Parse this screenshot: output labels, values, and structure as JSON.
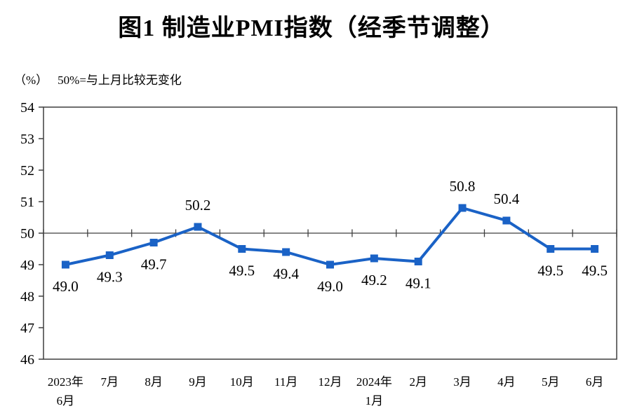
{
  "title": "图1  制造业PMI指数（经季节调整）",
  "unit_label": "（%）",
  "reference_note": "50%=与上月比较无变化",
  "colors": {
    "line": "#1a62c6",
    "marker": "#1a62c6",
    "axis": "#3f3f3f",
    "text": "#000000"
  },
  "chart_data": {
    "type": "line",
    "title": "图1  制造业PMI指数（经季节调整）",
    "ylabel": "（%）",
    "annotation": "50%=与上月比较无变化",
    "categories": [
      [
        "2023年",
        "6月"
      ],
      [
        "7月"
      ],
      [
        "8月"
      ],
      [
        "9月"
      ],
      [
        "10月"
      ],
      [
        "11月"
      ],
      [
        "12月"
      ],
      [
        "2024年",
        "1月"
      ],
      [
        "2月"
      ],
      [
        "3月"
      ],
      [
        "4月"
      ],
      [
        "5月"
      ],
      [
        "6月"
      ]
    ],
    "series": [
      {
        "name": "制造业PMI指数",
        "values": [
          49.0,
          49.3,
          49.7,
          50.2,
          49.5,
          49.4,
          49.0,
          49.2,
          49.1,
          50.8,
          50.4,
          49.5,
          49.5
        ]
      }
    ],
    "label_positions": [
      "below",
      "below",
      "below",
      "above",
      "below",
      "below",
      "below",
      "below",
      "below",
      "above",
      "above",
      "below",
      "below"
    ],
    "yticks": [
      46,
      47,
      48,
      49,
      50,
      51,
      52,
      53,
      54
    ],
    "ylim": [
      46,
      54
    ],
    "reference_line": 50,
    "grid": false,
    "legend": "none"
  }
}
